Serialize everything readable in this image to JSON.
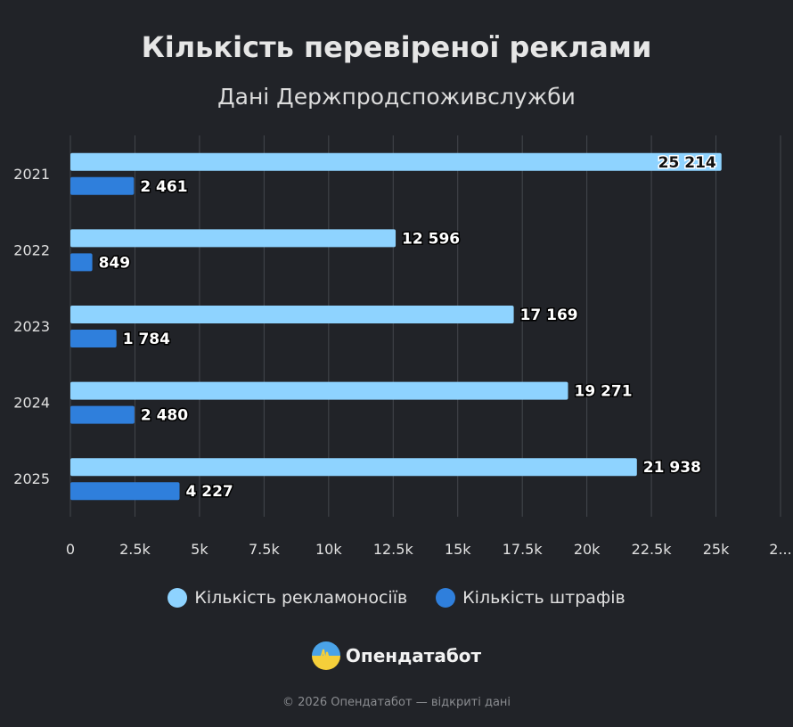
{
  "chart_data": {
    "type": "bar",
    "orientation": "horizontal",
    "title": "Кількість перевіреної реклами",
    "subtitle": "Дані Держпродспоживслужби",
    "categories": [
      "2021",
      "2022",
      "2023",
      "2024",
      "2025"
    ],
    "series": [
      {
        "name": "Кількість рекламоносіїв",
        "color": "#8ed3ff",
        "values": [
          25214,
          12596,
          17169,
          19271,
          21938
        ],
        "labels": [
          "25 214",
          "12 596",
          "17 169",
          "19 271",
          "21 938"
        ]
      },
      {
        "name": "Кількість штрафів",
        "color": "#2f7fdc",
        "values": [
          2461,
          849,
          1784,
          2480,
          4227
        ],
        "labels": [
          "2 461",
          "849",
          "1 784",
          "2 480",
          "4 227"
        ]
      }
    ],
    "xlim": [
      0,
      27500
    ],
    "xticks": [
      "0",
      "2.5k",
      "5k",
      "7.5k",
      "10k",
      "12.5k",
      "15k",
      "17.5k",
      "20k",
      "22.5k",
      "25k",
      "2..."
    ],
    "grid": true,
    "legend_position": "bottom"
  },
  "brand": {
    "name": "Опендатабот"
  },
  "footer": "© 2026 Опендатабот — відкриті дані"
}
